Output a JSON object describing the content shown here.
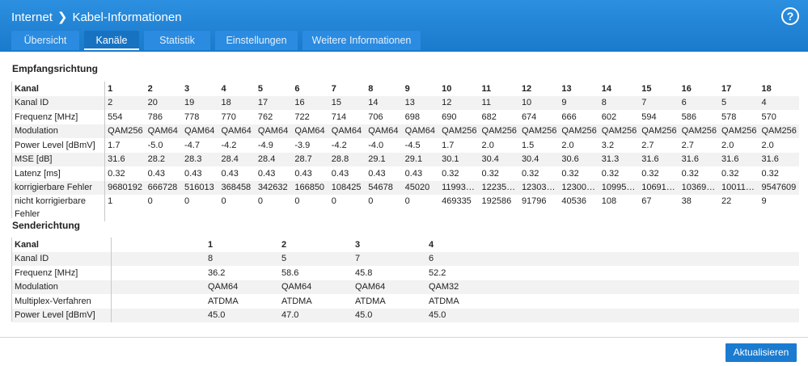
{
  "header": {
    "crumb_root": "Internet",
    "crumb_sep": "❯",
    "crumb_page": "Kabel-Informationen",
    "help": "?"
  },
  "tabs": [
    {
      "label": "Übersicht",
      "active": false
    },
    {
      "label": "Kanäle",
      "active": true
    },
    {
      "label": "Statistik",
      "active": false
    },
    {
      "label": "Einstellungen",
      "active": false
    },
    {
      "label": "Weitere Informationen",
      "active": false
    }
  ],
  "downstream": {
    "title": "Empfangsrichtung",
    "rows": [
      {
        "label": "Kanal",
        "values": [
          "1",
          "2",
          "3",
          "4",
          "5",
          "6",
          "7",
          "8",
          "9",
          "10",
          "11",
          "12",
          "13",
          "14",
          "15",
          "16",
          "17",
          "18"
        ]
      },
      {
        "label": "Kanal ID",
        "values": [
          "2",
          "20",
          "19",
          "18",
          "17",
          "16",
          "15",
          "14",
          "13",
          "12",
          "11",
          "10",
          "9",
          "8",
          "7",
          "6",
          "5",
          "4"
        ]
      },
      {
        "label": "Frequenz [MHz]",
        "values": [
          "554",
          "786",
          "778",
          "770",
          "762",
          "722",
          "714",
          "706",
          "698",
          "690",
          "682",
          "674",
          "666",
          "602",
          "594",
          "586",
          "578",
          "570"
        ]
      },
      {
        "label": "Modulation",
        "values": [
          "QAM256",
          "QAM64",
          "QAM64",
          "QAM64",
          "QAM64",
          "QAM64",
          "QAM64",
          "QAM64",
          "QAM64",
          "QAM256",
          "QAM256",
          "QAM256",
          "QAM256",
          "QAM256",
          "QAM256",
          "QAM256",
          "QAM256",
          "QAM256"
        ]
      },
      {
        "label": "Power Level [dBmV]",
        "values": [
          "1.7",
          "-5.0",
          "-4.7",
          "-4.2",
          "-4.9",
          "-3.9",
          "-4.2",
          "-4.0",
          "-4.5",
          "1.7",
          "2.0",
          "1.5",
          "2.0",
          "3.2",
          "2.7",
          "2.7",
          "2.0",
          "2.0"
        ]
      },
      {
        "label": "MSE [dB]",
        "values": [
          "31.6",
          "28.2",
          "28.3",
          "28.4",
          "28.4",
          "28.7",
          "28.8",
          "29.1",
          "29.1",
          "30.1",
          "30.4",
          "30.4",
          "30.6",
          "31.3",
          "31.6",
          "31.6",
          "31.6",
          "31.6"
        ]
      },
      {
        "label": "Latenz [ms]",
        "values": [
          "0.32",
          "0.43",
          "0.43",
          "0.43",
          "0.43",
          "0.43",
          "0.43",
          "0.43",
          "0.43",
          "0.32",
          "0.32",
          "0.32",
          "0.32",
          "0.32",
          "0.32",
          "0.32",
          "0.32",
          "0.32"
        ]
      },
      {
        "label": "korrigierbare Fehler",
        "values": [
          "9680192",
          "666728",
          "516013",
          "368458",
          "342632",
          "166850",
          "108425",
          "54678",
          "45020",
          "11993…",
          "12235…",
          "12303…",
          "12300…",
          "10995…",
          "10691…",
          "10369…",
          "10011…",
          "9547609"
        ]
      },
      {
        "label": "nicht korrigierbare Fehler",
        "values": [
          "1",
          "0",
          "0",
          "0",
          "0",
          "0",
          "0",
          "0",
          "0",
          "469335",
          "192586",
          "91796",
          "40536",
          "108",
          "67",
          "38",
          "22",
          "9"
        ]
      }
    ]
  },
  "upstream": {
    "title": "Senderichtung",
    "rows": [
      {
        "label": "Kanal",
        "values": [
          "1",
          "2",
          "3",
          "4"
        ]
      },
      {
        "label": "Kanal ID",
        "values": [
          "8",
          "5",
          "7",
          "6"
        ]
      },
      {
        "label": "Frequenz [MHz]",
        "values": [
          "36.2",
          "58.6",
          "45.8",
          "52.2"
        ]
      },
      {
        "label": "Modulation",
        "values": [
          "QAM64",
          "QAM64",
          "QAM64",
          "QAM32"
        ]
      },
      {
        "label": "Multiplex-Verfahren",
        "values": [
          "ATDMA",
          "ATDMA",
          "ATDMA",
          "ATDMA"
        ]
      },
      {
        "label": "Power Level [dBmV]",
        "values": [
          "45.0",
          "47.0",
          "45.0",
          "45.0"
        ]
      }
    ]
  },
  "footer": {
    "refresh_label": "Aktualisieren"
  },
  "colors": {
    "header_blue": "#1f84d6",
    "button_blue": "#1a7bd0"
  }
}
